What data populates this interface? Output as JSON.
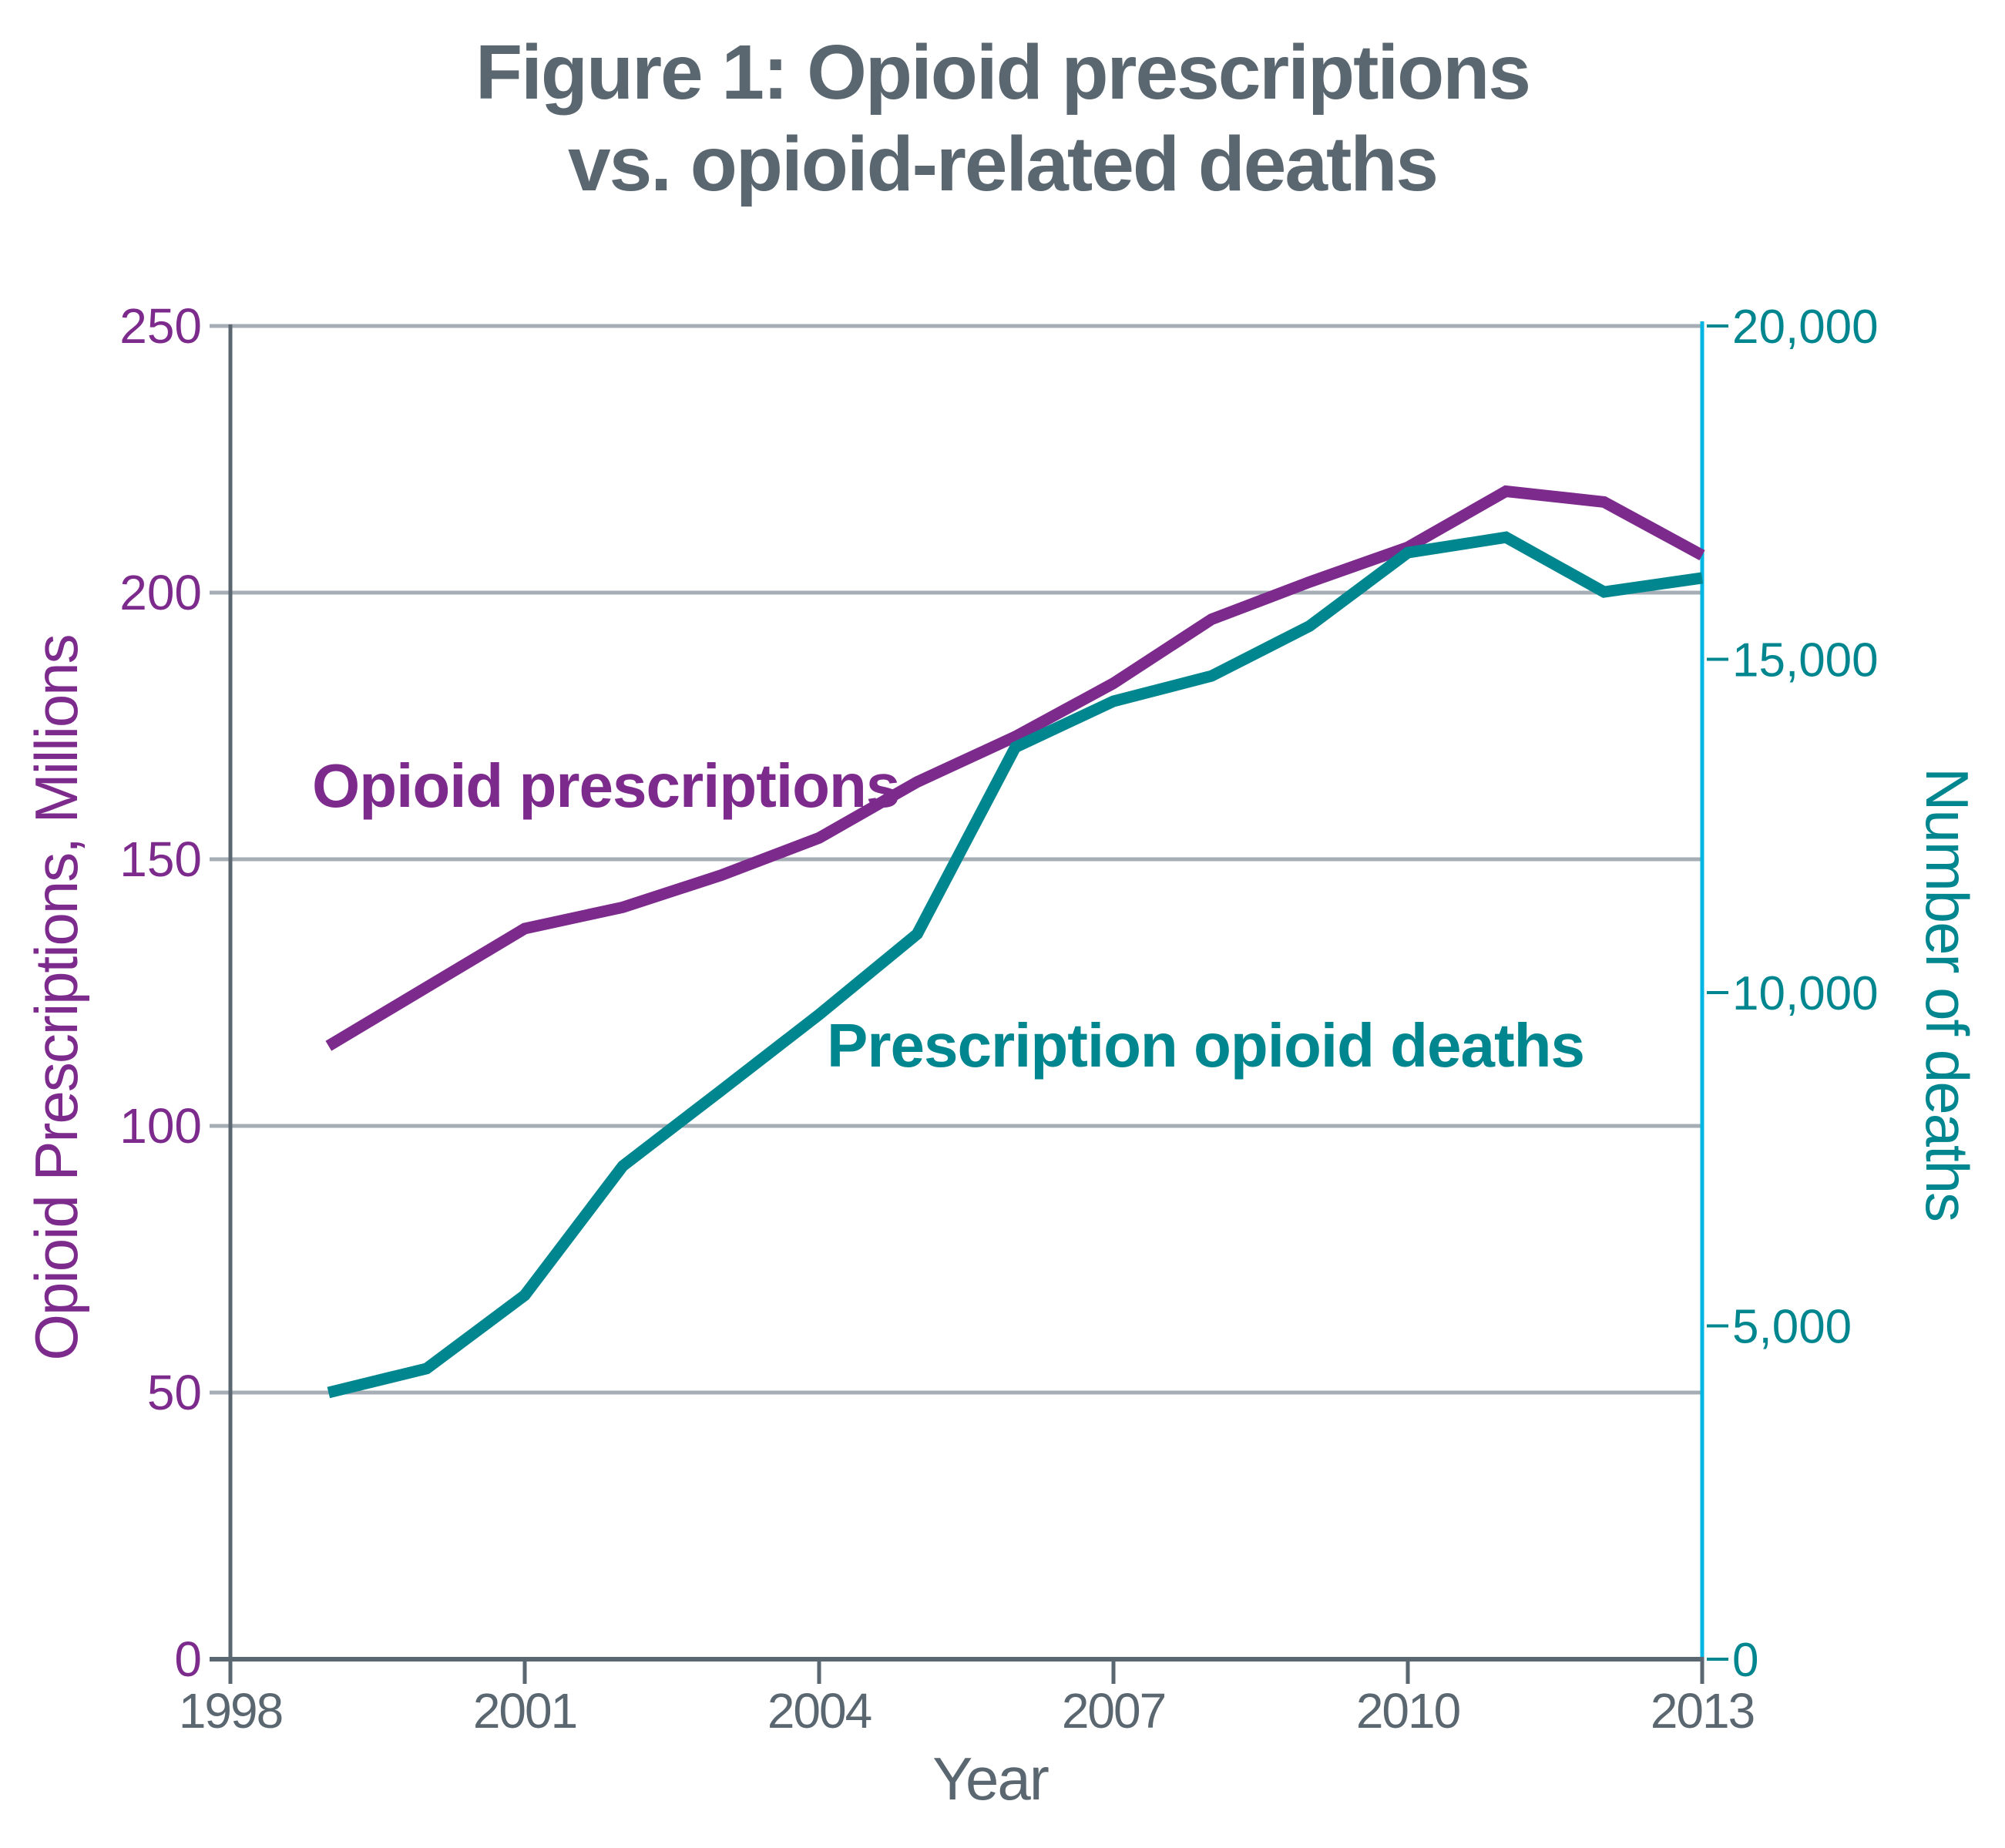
{
  "chart_data": {
    "type": "line",
    "title": "Figure 1: Opioid prescriptions vs. opioid-related deaths",
    "title_lines": [
      "Figure 1: Opioid prescriptions",
      "vs. opioid-related deaths"
    ],
    "xlabel": "Year",
    "ylabel_left": "Opioid Prescriptions, Millions",
    "ylabel_right": "Number of deaths",
    "x": [
      1999,
      2000,
      2001,
      2002,
      2003,
      2004,
      2005,
      2006,
      2007,
      2008,
      2009,
      2010,
      2011,
      2012,
      2013
    ],
    "xlim": [
      1998,
      2013
    ],
    "x_ticks": [
      1998,
      2001,
      2004,
      2007,
      2010,
      2013
    ],
    "x_tick_labels": [
      "1998",
      "2001",
      "2004",
      "2007",
      "2010",
      "2013"
    ],
    "ylim_left": [
      0,
      250
    ],
    "y_ticks_left": [
      0,
      50,
      100,
      150,
      200,
      250
    ],
    "y_tick_labels_left": [
      "0",
      "50",
      "100",
      "150",
      "200",
      "250"
    ],
    "ylim_right": [
      0,
      20000
    ],
    "y_ticks_right": [
      0,
      5000,
      10000,
      15000,
      20000
    ],
    "y_tick_labels_right": [
      "0",
      "5,000",
      "10,000",
      "15,000",
      "20,000"
    ],
    "grid": "horizontal",
    "series": [
      {
        "name": "Opioid prescriptions",
        "axis": "left",
        "color": "#7d2a8d",
        "values": [
          115,
          126,
          137,
          141,
          147,
          154,
          164.5,
          173,
          183,
          195,
          202,
          208.5,
          219,
          217,
          207
        ]
      },
      {
        "name": "Prescription opioid deaths",
        "axis": "right",
        "color": "#00868f",
        "values": [
          4000,
          4360,
          5460,
          7400,
          8530,
          9670,
          10880,
          13680,
          14370,
          14750,
          15500,
          16600,
          16830,
          16010,
          16220
        ]
      }
    ],
    "annotations": [
      {
        "text": "Opioid prescriptions",
        "series": 0
      },
      {
        "text": "Prescription opioid deaths",
        "series": 1
      }
    ]
  },
  "colors": {
    "text": "#5a6770",
    "axis": "#5a6770",
    "grid": "#a5aeb4",
    "right_axis": "#00b5e2",
    "left_series": "#7d2a8d",
    "right_series": "#00868f"
  }
}
